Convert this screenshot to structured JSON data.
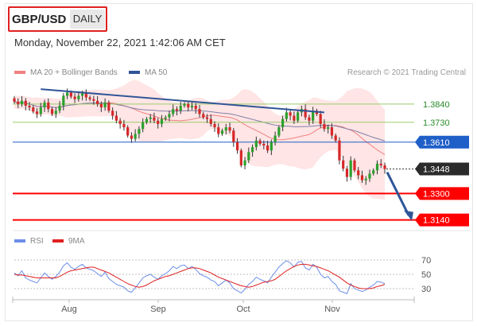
{
  "header": {
    "symbol": "GBP/USD",
    "period": "DAILY",
    "datetime": "Monday, November 22, 2021 1:42:06 AM CET",
    "credit": "Research © 2021 Trading Central"
  },
  "legend": {
    "ma_bb": "MA 20 + Bollinger Bands",
    "ma50": "MA 50",
    "rsi": "RSI",
    "rsi_ma": "9MA"
  },
  "colors": {
    "bull": "#2ca02c",
    "bear": "#d62728",
    "ma20": "#f08080",
    "band": "#ffe0e0",
    "ma50": "#7f7fa8",
    "trend": "#2f5597",
    "red_level": "#ff0000",
    "blue_level": "#1f5fc8",
    "green_level": "#9acd6a",
    "rsi": "#6b8ee8",
    "rsi_ma": "#e02020"
  },
  "chart_data": {
    "type": "candlestick",
    "symbol": "GBP/USD",
    "period": "DAILY",
    "x_labels": [
      "Aug",
      "Sep",
      "Oct",
      "Nov"
    ],
    "ylim": [
      1.31,
      1.395
    ],
    "levels": [
      {
        "value": 1.384,
        "label": "1.3840",
        "style": "green"
      },
      {
        "value": 1.373,
        "label": "1.3730",
        "style": "green"
      },
      {
        "value": 1.361,
        "label": "1.3610",
        "style": "blue"
      },
      {
        "value": 1.3448,
        "label": "1.3448",
        "style": "current"
      },
      {
        "value": 1.33,
        "label": "1.3300",
        "style": "red"
      },
      {
        "value": 1.314,
        "label": "1.3140",
        "style": "red"
      }
    ],
    "closes": [
      1.3855,
      1.384,
      1.386,
      1.383,
      1.382,
      1.3795,
      1.378,
      1.382,
      1.385,
      1.381,
      1.378,
      1.38,
      1.383,
      1.389,
      1.391,
      1.3885,
      1.387,
      1.389,
      1.3905,
      1.388,
      1.387,
      1.386,
      1.384,
      1.382,
      1.385,
      1.38,
      1.377,
      1.374,
      1.372,
      1.37,
      1.365,
      1.363,
      1.366,
      1.369,
      1.373,
      1.375,
      1.376,
      1.374,
      1.372,
      1.375,
      1.376,
      1.378,
      1.381,
      1.38,
      1.383,
      1.384,
      1.382,
      1.383,
      1.381,
      1.378,
      1.376,
      1.375,
      1.372,
      1.37,
      1.366,
      1.368,
      1.37,
      1.368,
      1.361,
      1.356,
      1.347,
      1.35,
      1.355,
      1.358,
      1.362,
      1.36,
      1.359,
      1.356,
      1.361,
      1.365,
      1.37,
      1.375,
      1.379,
      1.377,
      1.374,
      1.379,
      1.381,
      1.376,
      1.374,
      1.38,
      1.378,
      1.372,
      1.369,
      1.37,
      1.365,
      1.362,
      1.35,
      1.345,
      1.34,
      1.35,
      1.344,
      1.341,
      1.338,
      1.339,
      1.342,
      1.344,
      1.348,
      1.347,
      1.3448
    ],
    "trendline": {
      "start_index": 7,
      "end_index": 82,
      "start_value": 1.393,
      "end_value": 1.379
    },
    "projection": {
      "from": 1.3448,
      "to": 1.314
    },
    "rsi": {
      "levels": [
        70,
        50,
        30
      ],
      "values": [
        52,
        48,
        55,
        45,
        42,
        40,
        38,
        45,
        52,
        47,
        43,
        47,
        53,
        62,
        66,
        60,
        57,
        61,
        64,
        59,
        57,
        55,
        51,
        47,
        53,
        44,
        40,
        36,
        34,
        32,
        27,
        25,
        31,
        38,
        45,
        48,
        50,
        46,
        43,
        48,
        51,
        55,
        61,
        58,
        62,
        63,
        58,
        61,
        57,
        51,
        48,
        46,
        42,
        40,
        34,
        38,
        42,
        38,
        30,
        27,
        24,
        29,
        36,
        40,
        46,
        43,
        41,
        38,
        46,
        53,
        60,
        65,
        69,
        66,
        60,
        67,
        68,
        59,
        56,
        64,
        60,
        50,
        45,
        47,
        40,
        36,
        27,
        25,
        23,
        37,
        30,
        28,
        26,
        28,
        32,
        35,
        40,
        39,
        37
      ],
      "ma9": [
        50,
        49,
        49,
        48,
        47,
        46,
        45,
        45,
        45,
        45,
        45,
        45,
        47,
        50,
        53,
        55,
        56,
        57,
        58,
        59,
        60,
        60,
        58,
        56,
        54,
        52,
        49,
        46,
        43,
        40,
        37,
        35,
        33,
        32,
        33,
        35,
        38,
        41,
        43,
        45,
        47,
        48,
        50,
        52,
        54,
        56,
        58,
        59,
        59,
        58,
        56,
        54,
        52,
        49,
        46,
        44,
        42,
        40,
        38,
        36,
        34,
        33,
        32,
        33,
        35,
        37,
        39,
        40,
        41,
        43,
        47,
        51,
        55,
        58,
        61,
        63,
        64,
        64,
        63,
        62,
        61,
        59,
        57,
        55,
        52,
        49,
        46,
        42,
        38,
        35,
        33,
        31,
        30,
        30,
        30,
        31,
        33,
        34,
        36
      ]
    }
  }
}
